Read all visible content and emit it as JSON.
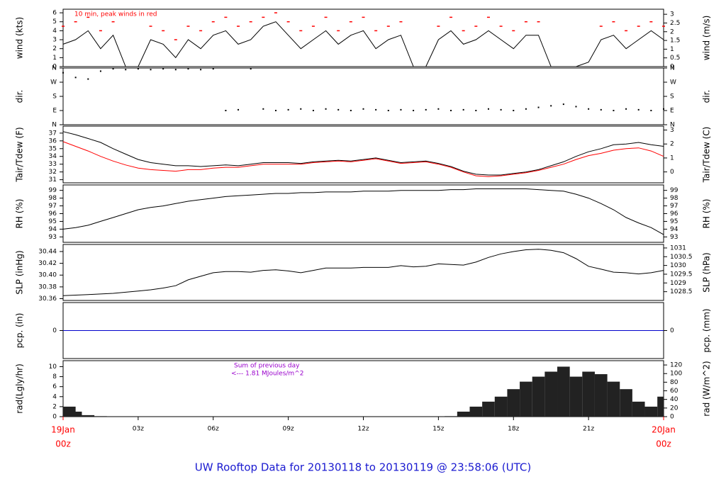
{
  "title": "UW Rooftop Data for 20130118  to  20130119 @ 23:58:06  (UTC)",
  "time": {
    "xlim": [
      0,
      24
    ],
    "xticks": [
      {
        "value": 0,
        "label": "00z"
      },
      {
        "value": 3,
        "label": "03z"
      },
      {
        "value": 6,
        "label": "06z"
      },
      {
        "value": 9,
        "label": "09z"
      },
      {
        "value": 12,
        "label": "12z"
      },
      {
        "value": 15,
        "label": "15z"
      },
      {
        "value": 18,
        "label": "18z"
      },
      {
        "value": 21,
        "label": "21z"
      },
      {
        "value": 24,
        "label": "00z"
      }
    ],
    "xtick_dates": [
      {
        "value": 0,
        "label": "19Jan"
      },
      {
        "value": 24,
        "label": "20Jan"
      }
    ],
    "date_color": "#ff0000",
    "x": [
      0,
      0.5,
      1,
      1.5,
      2,
      2.5,
      3,
      3.5,
      4,
      4.5,
      5,
      5.5,
      6,
      6.5,
      7,
      7.5,
      8,
      8.5,
      9,
      9.5,
      10,
      10.5,
      11,
      11.5,
      12,
      12.5,
      13,
      13.5,
      14,
      14.5,
      15,
      15.5,
      16,
      16.5,
      17,
      17.5,
      18,
      18.5,
      19,
      19.5,
      20,
      20.5,
      21,
      21.5,
      22,
      22.5,
      23,
      23.5,
      24
    ]
  },
  "chart_data": [
    {
      "type": "line",
      "ylabel": "wind (kts)",
      "y2label": "wind (m/s)",
      "annotation": "10 min, peak winds in red",
      "annotation_color": "#ff0000",
      "ylim": [
        0,
        6.4
      ],
      "yticks": [
        0,
        1,
        2,
        3,
        4,
        5,
        6
      ],
      "y2lim": [
        0,
        3.29
      ],
      "y2ticks": [
        0,
        0.5,
        1,
        1.5,
        2,
        2.5,
        3
      ],
      "series": [
        {
          "color": "#000000",
          "values": [
            2.5,
            3,
            4,
            2,
            3.5,
            0,
            0,
            3,
            2.5,
            1,
            3,
            2,
            3.5,
            4,
            2.5,
            3,
            4.5,
            5,
            3.5,
            2,
            3,
            4,
            2.5,
            3.5,
            4,
            2,
            3,
            3.5,
            0,
            0,
            3,
            4,
            2.5,
            3,
            4,
            3,
            2,
            3.5,
            3.5,
            0,
            0,
            0,
            0.5,
            3,
            3.5,
            2,
            3,
            4,
            3
          ]
        },
        {
          "color": "#ff0000",
          "marker": "dash",
          "values": [
            4.5,
            5,
            5.5,
            4,
            5,
            null,
            null,
            4.5,
            4,
            3,
            4.5,
            4,
            5,
            5.5,
            4.5,
            5,
            5.5,
            6,
            5,
            4,
            4.5,
            5.5,
            4,
            5,
            5.5,
            4,
            4.5,
            5,
            null,
            null,
            4.5,
            5.5,
            4,
            4.5,
            5.5,
            4.5,
            4,
            5,
            5,
            null,
            null,
            null,
            null,
            4.5,
            5,
            4,
            4.5,
            5,
            4.5
          ]
        }
      ]
    },
    {
      "type": "scatter",
      "ylabel": "dir.",
      "y2label": "dir.",
      "ylim": [
        0,
        360
      ],
      "yticks": [
        {
          "value": 0,
          "label": "N"
        },
        {
          "value": 90,
          "label": "E"
        },
        {
          "value": 180,
          "label": "S"
        },
        {
          "value": 270,
          "label": "W"
        },
        {
          "value": 360,
          "label": "N"
        }
      ],
      "y2lim": [
        0,
        360
      ],
      "y2ticks": [
        {
          "value": 0,
          "label": "N"
        },
        {
          "value": 90,
          "label": "E"
        },
        {
          "value": 180,
          "label": "S"
        },
        {
          "value": 270,
          "label": "W"
        },
        {
          "value": 360,
          "label": "N"
        }
      ],
      "series": [
        {
          "color": "#000000",
          "values": [
            330,
            300,
            290,
            340,
            355,
            350,
            355,
            350,
            355,
            350,
            355,
            350,
            355,
            90,
            95,
            355,
            100,
            90,
            95,
            100,
            90,
            100,
            95,
            90,
            100,
            95,
            90,
            95,
            90,
            95,
            100,
            90,
            95,
            90,
            100,
            95,
            90,
            100,
            110,
            120,
            130,
            115,
            100,
            95,
            90,
            100,
            95,
            90,
            100
          ]
        }
      ]
    },
    {
      "type": "line",
      "ylabel": "Tair/Tdew (F)",
      "y2label": "Tair/Tdew (C)",
      "ylim": [
        30.6,
        37.9
      ],
      "yticks": [
        31,
        32,
        33,
        34,
        35,
        36,
        37
      ],
      "y2lim": [
        -0.78,
        3.28
      ],
      "y2ticks": [
        0,
        1,
        2,
        3
      ],
      "series": [
        {
          "color": "#000000",
          "values": [
            37.2,
            36.8,
            36.3,
            35.8,
            35.0,
            34.3,
            33.6,
            33.2,
            33.0,
            32.8,
            32.8,
            32.7,
            32.8,
            32.9,
            32.8,
            33.0,
            33.2,
            33.2,
            33.2,
            33.1,
            33.3,
            33.4,
            33.5,
            33.4,
            33.6,
            33.8,
            33.5,
            33.2,
            33.3,
            33.4,
            33.1,
            32.7,
            32.1,
            31.7,
            31.6,
            31.6,
            31.8,
            32.0,
            32.3,
            32.8,
            33.3,
            34.0,
            34.6,
            35.0,
            35.5,
            35.6,
            35.8,
            35.5,
            35.3
          ]
        },
        {
          "color": "#ff0000",
          "values": [
            35.9,
            35.3,
            34.7,
            34.0,
            33.4,
            32.9,
            32.5,
            32.3,
            32.2,
            32.1,
            32.3,
            32.3,
            32.5,
            32.6,
            32.6,
            32.8,
            33.0,
            33.0,
            33.0,
            33.0,
            33.2,
            33.3,
            33.4,
            33.3,
            33.5,
            33.7,
            33.4,
            33.1,
            33.2,
            33.3,
            33.0,
            32.6,
            32.0,
            31.5,
            31.4,
            31.5,
            31.7,
            31.9,
            32.2,
            32.6,
            33.0,
            33.6,
            34.1,
            34.4,
            34.8,
            35.0,
            35.1,
            34.7,
            34.0
          ]
        }
      ]
    },
    {
      "type": "line",
      "ylabel": "RH (%)",
      "y2label": "RH (%)",
      "ylim": [
        92.3,
        99.7
      ],
      "yticks": [
        93,
        94,
        95,
        96,
        97,
        98,
        99
      ],
      "y2lim": [
        92.3,
        99.7
      ],
      "y2ticks": [
        93,
        94,
        95,
        96,
        97,
        98,
        99
      ],
      "series": [
        {
          "color": "#000000",
          "values": [
            94.0,
            94.2,
            94.5,
            95.0,
            95.5,
            96.0,
            96.5,
            96.8,
            97.0,
            97.3,
            97.6,
            97.8,
            98.0,
            98.2,
            98.3,
            98.4,
            98.5,
            98.6,
            98.6,
            98.7,
            98.7,
            98.8,
            98.8,
            98.8,
            98.9,
            98.9,
            98.9,
            99.0,
            99.0,
            99.0,
            99.0,
            99.1,
            99.1,
            99.2,
            99.2,
            99.2,
            99.2,
            99.2,
            99.1,
            99.0,
            98.9,
            98.5,
            98.0,
            97.3,
            96.5,
            95.5,
            94.8,
            94.2,
            93.3
          ]
        }
      ]
    },
    {
      "type": "line",
      "ylabel": "SLP (inHg)",
      "y2label": "SLP (hPa)",
      "ylim": [
        30.357,
        30.452
      ],
      "yticks": [
        30.36,
        30.38,
        {
          "value": 30.4,
          "label": "30.40"
        },
        30.42,
        30.44
      ],
      "y2lim": [
        1028.0,
        1031.2
      ],
      "y2ticks": [
        1028.5,
        1029,
        1029.5,
        1030,
        1030.5,
        1031
      ],
      "series": [
        {
          "color": "#000000",
          "values": [
            30.365,
            30.366,
            30.367,
            30.368,
            30.369,
            30.371,
            30.373,
            30.375,
            30.378,
            30.382,
            30.392,
            30.398,
            30.404,
            30.406,
            30.406,
            30.405,
            30.408,
            30.409,
            30.407,
            30.404,
            30.408,
            30.412,
            30.412,
            30.412,
            30.413,
            30.413,
            30.413,
            30.416,
            30.414,
            30.415,
            30.419,
            30.418,
            30.417,
            30.422,
            30.43,
            30.436,
            30.44,
            30.443,
            30.444,
            30.442,
            30.438,
            30.428,
            30.415,
            30.41,
            30.405,
            30.404,
            30.402,
            30.404,
            30.408
          ]
        }
      ]
    },
    {
      "type": "line",
      "ylabel": "pcp. (in)",
      "y2label": "pcp. (mm)",
      "ylim": [
        -1,
        1
      ],
      "yticks": [
        0
      ],
      "y2lim": [
        -1,
        1
      ],
      "y2ticks": [
        0
      ],
      "x": [
        0,
        24
      ],
      "series": [
        {
          "color": "#0000cc",
          "values": [
            0,
            0
          ]
        }
      ]
    },
    {
      "type": "area",
      "ylabel": "rad(Lgly/hr)",
      "y2label": "rad (W/m^2)",
      "annotation": "Sum of previous day",
      "annotation2": "<--- 1.81 MJoules/m^2",
      "annotation_color": "#9900cc",
      "ylim": [
        0,
        11.2
      ],
      "yticks": [
        0,
        2,
        4,
        6,
        8,
        10
      ],
      "y2lim": [
        0,
        130
      ],
      "y2ticks": [
        0,
        20,
        40,
        60,
        80,
        100,
        120
      ],
      "series": [
        {
          "color": "#222222",
          "values": [
            2.0,
            1.0,
            0.3,
            0.1,
            0,
            0,
            0,
            0,
            0,
            0,
            0,
            0,
            0,
            0,
            0,
            0,
            0,
            0,
            0,
            0,
            0,
            0,
            0,
            0,
            0,
            0,
            0,
            0,
            0,
            0,
            0,
            0.1,
            1.0,
            2.0,
            3.0,
            4.0,
            5.5,
            7.0,
            8.0,
            9.0,
            10.0,
            8.0,
            9.0,
            8.5,
            7.0,
            5.5,
            3.0,
            2.0,
            4.0
          ]
        }
      ]
    }
  ]
}
